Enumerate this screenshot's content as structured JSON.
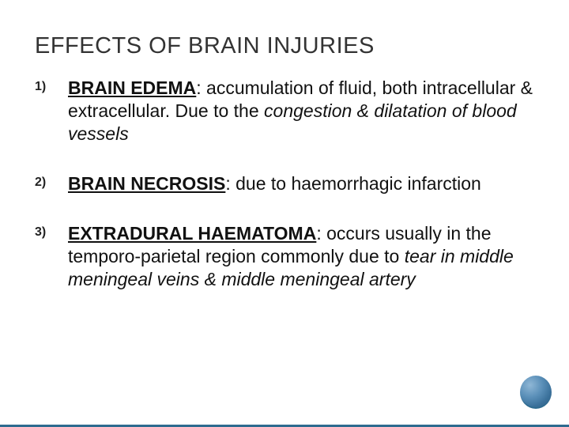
{
  "title": "EFFECTS OF BRAIN INJURIES",
  "title_color": "#333333",
  "title_fontsize": 29,
  "body_fontsize": 23,
  "marker_fontsize": 16,
  "accent_border_color": "#2e6b8f",
  "ball_gradient": [
    "#8fb7d6",
    "#5a8fb8",
    "#3a709a",
    "#2c5d82"
  ],
  "background_color": "#ffffff",
  "items": [
    {
      "marker": "1)",
      "term": "BRAIN EDEMA",
      "after_term": ": accumulation of fluid, both intracellular & extracellular. Due to the ",
      "italic": "congestion & dilatation of blood vessels",
      "tail": ""
    },
    {
      "marker": "2)",
      "term": "BRAIN NECROSIS",
      "after_term": ": due to haemorrhagic infarction",
      "italic": "",
      "tail": ""
    },
    {
      "marker": "3)",
      "term": "EXTRADURAL HAEMATOMA",
      "after_term": ": occurs usually in the temporo-parietal region commonly due to ",
      "italic": "tear in middle meningeal veins & middle meningeal artery",
      "tail": ""
    }
  ]
}
